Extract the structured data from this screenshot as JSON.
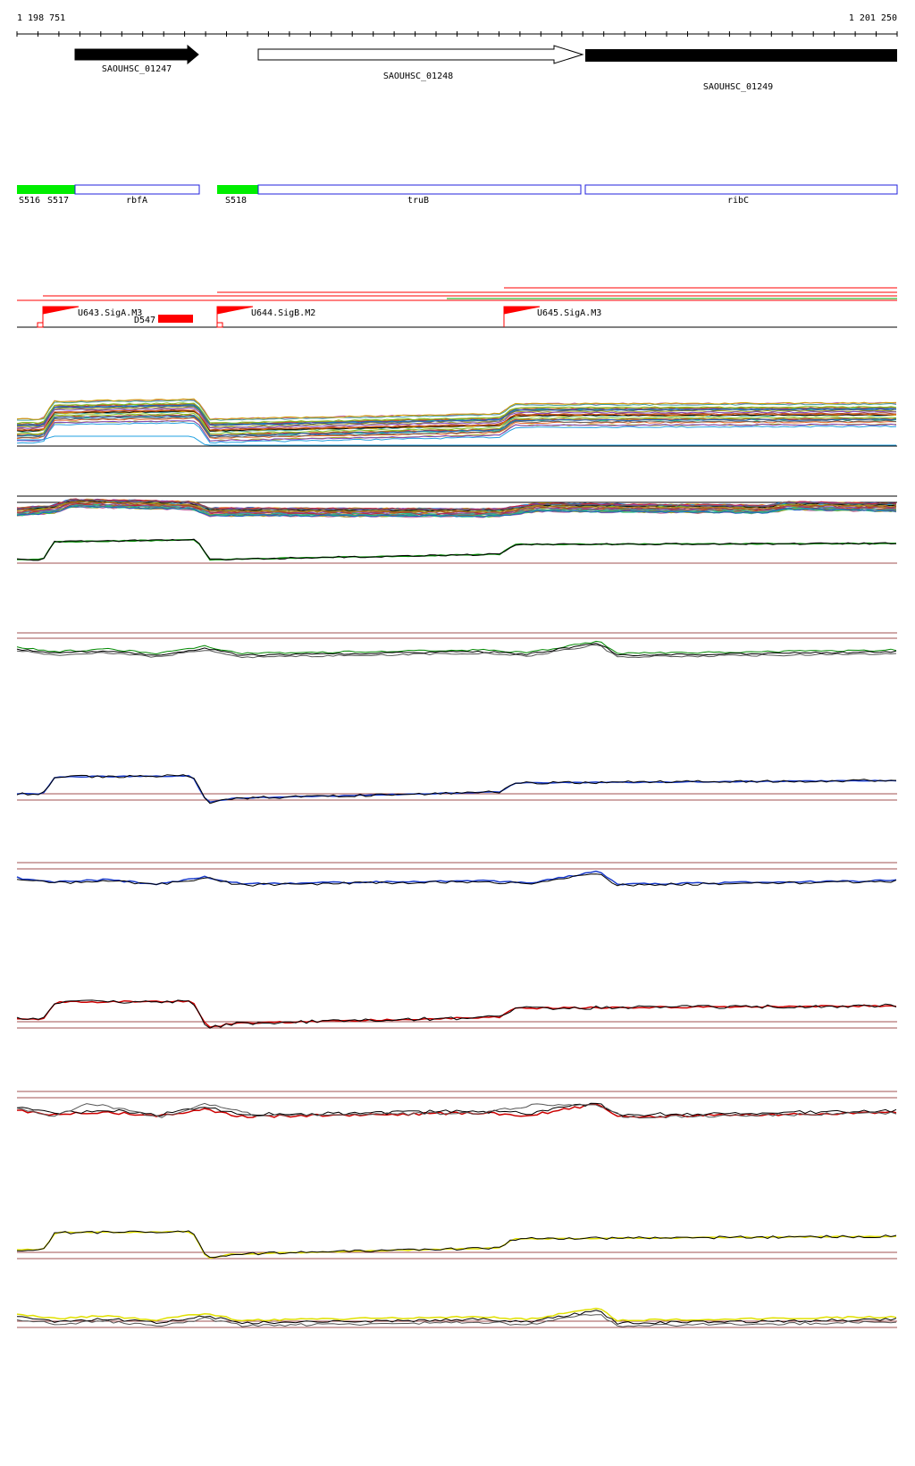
{
  "coordinates": {
    "start_label": "1 198 751",
    "end_label": "1 201 250"
  },
  "genes": [
    {
      "label": "SAOUHSC_01247",
      "fill": "black",
      "strand": "+"
    },
    {
      "label": "SAOUHSC_01248",
      "fill": "white",
      "strand": "+"
    },
    {
      "label": "SAOUHSC_01249",
      "fill": "black",
      "strand": "+"
    }
  ],
  "features": {
    "sites": [
      "S516",
      "S517",
      "S518"
    ],
    "orfs": [
      "rbfA",
      "truB",
      "ribC"
    ]
  },
  "promoters": [
    "U643.SigA.M3",
    "U644.SigB.M2",
    "U645.SigA.M3"
  ],
  "terminator": "D547",
  "colors": {
    "site_fill": "#00ee00",
    "orf_stroke": "#2222dd",
    "promoter": "#ff0000",
    "threshold_line": "#a05050",
    "series_green": "#008800",
    "series_blue": "#1a3ccc",
    "series_red": "#cc0000",
    "series_yellow": "#e0e000"
  }
}
